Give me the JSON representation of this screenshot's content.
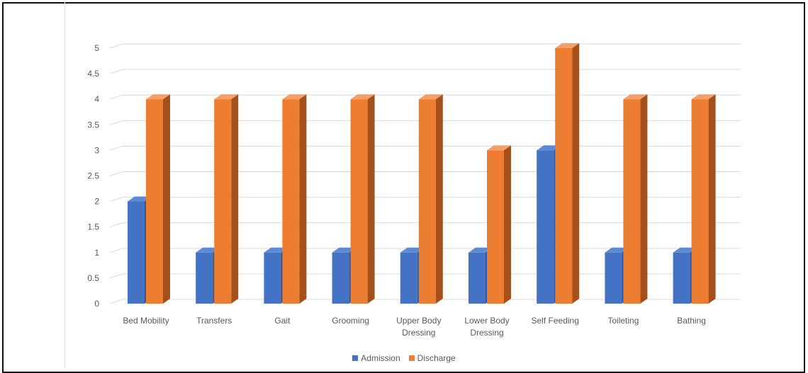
{
  "chart_data": {
    "type": "bar",
    "categories": [
      "Bed Mobility",
      "Transfers",
      "Gait",
      "Grooming",
      "Upper Body\nDressing",
      "Lower Body\nDressing",
      "Self Feeding",
      "Toileting",
      "Bathing"
    ],
    "series": [
      {
        "name": "Admission",
        "values": [
          2,
          1,
          1,
          1,
          1,
          1,
          3,
          1,
          1
        ],
        "color": "#4472C4"
      },
      {
        "name": "Discharge",
        "values": [
          4,
          4,
          4,
          4,
          4,
          3,
          5,
          4,
          4
        ],
        "color": "#ED7D31"
      }
    ],
    "yticks": [
      "0",
      "0.5",
      "1",
      "1.5",
      "2",
      "2.5",
      "3",
      "3.5",
      "4",
      "4.5",
      "5"
    ],
    "ylim": [
      0,
      5
    ],
    "grid": true,
    "style": "3d-clustered-column",
    "legend_position": "bottom"
  }
}
